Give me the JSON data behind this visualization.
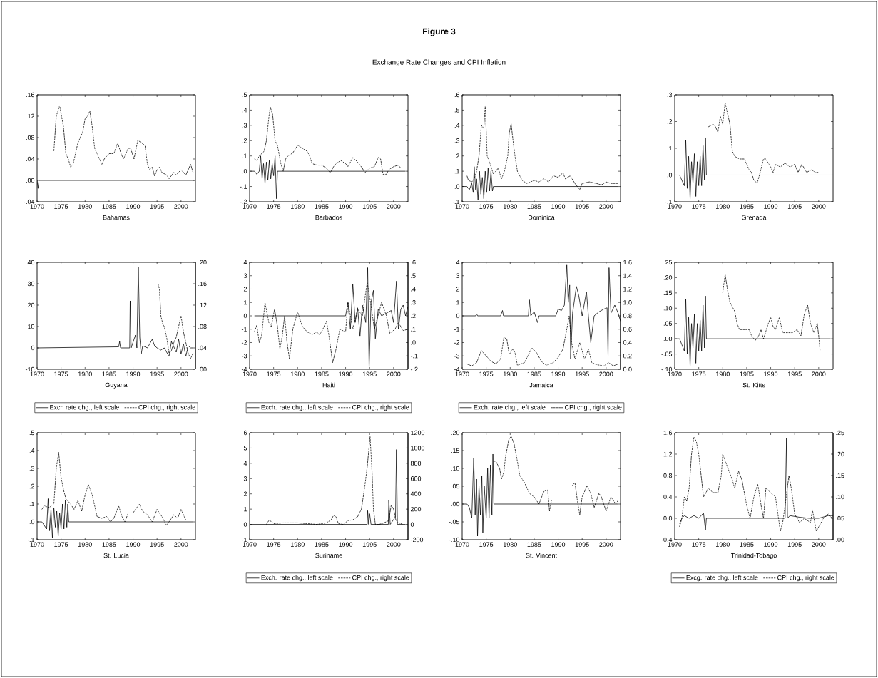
{
  "chart_data": [
    {
      "type": "line",
      "xlabel": "Bahamas",
      "xlim": [
        1970,
        2003
      ],
      "xticks": [
        1970,
        1975,
        1980,
        1985,
        1990,
        1995,
        2000
      ],
      "ylim": [
        -0.04,
        0.16
      ],
      "yticks": [
        {
          "value": -0.04,
          "label": "-.04"
        },
        {
          "value": 0,
          "label": ".00"
        },
        {
          "value": 0.04,
          "label": ".04"
        },
        {
          "value": 0.08,
          "label": ".08"
        },
        {
          "value": 0.12,
          "label": ".12"
        },
        {
          "value": 0.16,
          "label": ".16"
        }
      ],
      "series": [
        {
          "color": "#000000",
          "line_style": "solid",
          "x": [
            1970,
            1970.2,
            1970.4,
            2002.8
          ],
          "values": [
            0,
            -0.015,
            0,
            0
          ]
        },
        {
          "color": "#000000",
          "line_style": "dashed",
          "x": [
            1973.5,
            1974,
            1974.7,
            1975.5,
            1976,
            1976.5,
            1977,
            1977.5,
            1978.5,
            1979.5,
            1980,
            1980.5,
            1981,
            1981.5,
            1982,
            1982.5,
            1983.5,
            1984,
            1985,
            1986,
            1986.8,
            1987.5,
            1988,
            1989,
            1989.5,
            1990.2,
            1991,
            1991.8,
            1992.5,
            1993,
            1993.5,
            1994,
            1994.5,
            1995,
            1995.5,
            1996,
            1997,
            1997.5,
            1998.5,
            1999,
            2000,
            2001,
            2002,
            2002.5
          ],
          "values": [
            0.055,
            0.12,
            0.14,
            0.1,
            0.05,
            0.04,
            0.025,
            0.03,
            0.07,
            0.09,
            0.115,
            0.12,
            0.13,
            0.1,
            0.06,
            0.05,
            0.03,
            0.04,
            0.05,
            0.05,
            0.07,
            0.05,
            0.04,
            0.06,
            0.06,
            0.04,
            0.075,
            0.07,
            0.065,
            0.03,
            0.02,
            0.025,
            0.008,
            0.02,
            0.025,
            0.015,
            0.01,
            0.003,
            0.015,
            0.01,
            0.02,
            0.01,
            0.03,
            0.015
          ]
        }
      ]
    },
    {
      "type": "line",
      "xlabel": "Barbados",
      "xlim": [
        1970,
        2003
      ],
      "xticks": [
        1970,
        1975,
        1980,
        1985,
        1990,
        1995,
        2000
      ],
      "ylim": [
        -0.2,
        0.5
      ],
      "yticks": [
        {
          "value": -0.2,
          "label": "-.2"
        },
        {
          "value": -0.1,
          "label": "-.1"
        },
        {
          "value": 0,
          "label": ".0"
        },
        {
          "value": 0.1,
          "label": ".1"
        },
        {
          "value": 0.2,
          "label": ".2"
        },
        {
          "value": 0.3,
          "label": ".3"
        },
        {
          "value": 0.4,
          "label": ".4"
        },
        {
          "value": 0.5,
          "label": ".5"
        }
      ],
      "series": [
        {
          "color": "#000000",
          "line_style": "solid",
          "x": [
            1970,
            1971,
            1971.5,
            1972,
            1972.3,
            1972.6,
            1972.9,
            1973.2,
            1973.5,
            1973.8,
            1974.1,
            1974.4,
            1974.7,
            1975,
            1975.3,
            1975.6,
            1975.8,
            2002.5
          ],
          "values": [
            0,
            0,
            -0.02,
            0,
            0.1,
            -0.05,
            0.05,
            -0.08,
            0.06,
            -0.06,
            0.07,
            -0.05,
            0.05,
            -0.03,
            0.1,
            -0.18,
            0,
            0
          ]
        },
        {
          "color": "#000000",
          "line_style": "dashed",
          "x": [
            1971,
            1971.5,
            1972,
            1973,
            1973.5,
            1974,
            1974.3,
            1974.8,
            1975.3,
            1975.8,
            1976.5,
            1977,
            1977.5,
            1978,
            1979,
            1980,
            1981,
            1982,
            1982.5,
            1983,
            1984,
            1985,
            1986,
            1986.8,
            1987.5,
            1988,
            1989,
            1990,
            1990.5,
            1991.5,
            1992.5,
            1993.5,
            1994,
            1995,
            1996,
            1996.8,
            1997.3,
            1997.8,
            1998.5,
            1999,
            2000,
            2001,
            2001.5
          ],
          "values": [
            0.08,
            0.07,
            0.1,
            0.13,
            0.2,
            0.35,
            0.42,
            0.37,
            0.2,
            0.17,
            0.05,
            0,
            0.08,
            0.1,
            0.12,
            0.17,
            0.15,
            0.13,
            0.1,
            0.05,
            0.04,
            0.04,
            0.02,
            -0.01,
            0.03,
            0.05,
            0.07,
            0.05,
            0.03,
            0.09,
            0.06,
            0.02,
            -0.01,
            0.02,
            0.03,
            0.09,
            0.08,
            -0.02,
            -0.02,
            0.01,
            0.03,
            0.04,
            0.02
          ]
        }
      ]
    },
    {
      "type": "line",
      "title": "Figure 3",
      "subtitle": "Exchange Rate Changes and CPI Inflation",
      "xlabel": "Dominica",
      "xlim": [
        1970,
        2003
      ],
      "xticks": [
        1970,
        1975,
        1980,
        1985,
        1990,
        1995,
        2000
      ],
      "ylim": [
        -0.1,
        0.6
      ],
      "yticks": [
        {
          "value": -0.1,
          "label": "-.1"
        },
        {
          "value": 0,
          "label": ".0"
        },
        {
          "value": 0.1,
          "label": ".1"
        },
        {
          "value": 0.2,
          "label": ".2"
        },
        {
          "value": 0.3,
          "label": ".3"
        },
        {
          "value": 0.4,
          "label": ".4"
        },
        {
          "value": 0.5,
          "label": ".5"
        },
        {
          "value": 0.6,
          "label": ".6"
        }
      ],
      "series": [
        {
          "color": "#000000",
          "line_style": "solid",
          "x": [
            1970,
            1971,
            1971.5,
            1972,
            1972.3,
            1972.5,
            1972.8,
            1973,
            1973.3,
            1973.6,
            1973.9,
            1974.2,
            1974.5,
            1974.8,
            1975.1,
            1975.4,
            1975.7,
            1976,
            1976.3,
            1976.5,
            2002.5
          ],
          "values": [
            0,
            0,
            -0.02,
            0.02,
            -0.04,
            0.13,
            -0.02,
            0.05,
            -0.09,
            0.1,
            -0.05,
            0.06,
            -0.08,
            0.1,
            -0.04,
            0.12,
            -0.03,
            0.1,
            -0.03,
            0,
            0
          ]
        },
        {
          "color": "#000000",
          "line_style": "dashed",
          "x": [
            1971,
            1971.3,
            1972,
            1972.5,
            1973,
            1973.5,
            1974,
            1974.5,
            1974.8,
            1975.2,
            1975.8,
            1976.5,
            1977.5,
            1978.2,
            1978.8,
            1979.5,
            1979.8,
            1980.2,
            1980.6,
            1981,
            1981.5,
            1982.5,
            1983.5,
            1985,
            1986,
            1987,
            1988,
            1989,
            1990,
            1991,
            1991.5,
            1992.5,
            1993.5,
            1994.5,
            1995,
            1996.5,
            1998,
            1999,
            2000,
            2001,
            2002.5
          ],
          "values": [
            0.07,
            0.04,
            0.03,
            0.05,
            0.1,
            0.2,
            0.4,
            0.38,
            0.53,
            0.2,
            0.15,
            0.08,
            0.12,
            0.05,
            0.1,
            0.2,
            0.35,
            0.41,
            0.3,
            0.2,
            0.1,
            0.04,
            0.02,
            0.04,
            0.03,
            0.05,
            0.03,
            0.07,
            0.06,
            0.09,
            0.05,
            0.07,
            0.02,
            -0.02,
            0.02,
            0.03,
            0.02,
            0.01,
            0.03,
            0.02,
            0.02
          ]
        }
      ]
    },
    {
      "type": "line",
      "xlabel": "Grenada",
      "xlim": [
        1970,
        2003
      ],
      "xticks": [
        1970,
        1975,
        1980,
        1985,
        1990,
        1995,
        2000
      ],
      "ylim": [
        -0.1,
        0.3
      ],
      "yticks": [
        {
          "value": -0.1,
          "label": "-.1"
        },
        {
          "value": 0,
          "label": ".0"
        },
        {
          "value": 0.1,
          "label": ".1"
        },
        {
          "value": 0.2,
          "label": ".2"
        },
        {
          "value": 0.3,
          "label": ".3"
        }
      ],
      "series": [
        {
          "color": "#000000",
          "line_style": "solid",
          "x": [
            1970,
            1971,
            1971.5,
            1972,
            1972.3,
            1972.6,
            1972.9,
            1973.2,
            1973.5,
            1973.8,
            1974.1,
            1974.4,
            1974.7,
            1975,
            1975.3,
            1975.6,
            1975.9,
            1976.2,
            1976.4,
            1976.6,
            2003
          ],
          "values": [
            0,
            0,
            -0.02,
            -0.04,
            0.13,
            -0.05,
            0.07,
            -0.09,
            0.05,
            -0.03,
            0.08,
            -0.08,
            0.05,
            -0.04,
            0.07,
            -0.04,
            0.11,
            -0.02,
            0.14,
            0,
            0
          ]
        },
        {
          "color": "#000000",
          "line_style": "dashed",
          "x": [
            1977,
            1978,
            1978.5,
            1979,
            1979.5,
            1980,
            1980.5,
            1981,
            1981.5,
            1982,
            1982.5,
            1983.5,
            1984.5,
            1985,
            1985.5,
            1986,
            1986.5,
            1987.2,
            1987.8,
            1988.5,
            1989,
            1990,
            1990.5,
            1991,
            1992,
            1993,
            1994,
            1995,
            1995.7,
            1996.5,
            1997.5,
            1998.5,
            1999.3,
            2000
          ],
          "values": [
            0.18,
            0.19,
            0.18,
            0.16,
            0.22,
            0.19,
            0.27,
            0.23,
            0.19,
            0.09,
            0.07,
            0.06,
            0.06,
            0.04,
            0.02,
            0.01,
            -0.02,
            -0.03,
            0.01,
            0.06,
            0.06,
            0.03,
            0.01,
            0.04,
            0.03,
            0.045,
            0.03,
            0.04,
            0.01,
            0.04,
            0.01,
            0.02,
            0.01,
            0.01
          ]
        }
      ]
    },
    {
      "type": "line",
      "xlabel": "Guyana",
      "legend": "bottom",
      "xlim": [
        1970,
        2003
      ],
      "xticks": [
        1970,
        1975,
        1980,
        1985,
        1990,
        1995,
        2000
      ],
      "ylim": [
        -10,
        40
      ],
      "yticks": [
        -10,
        0,
        10,
        20,
        30,
        40
      ],
      "y2lim": [
        0,
        0.2
      ],
      "y2ticks": [
        {
          "value": 0,
          "label": ".00"
        },
        {
          "value": 0.04,
          "label": ".04"
        },
        {
          "value": 0.08,
          "label": ".08"
        },
        {
          "value": 0.12,
          "label": ".12"
        },
        {
          "value": 0.16,
          "label": ".16"
        },
        {
          "value": 0.2,
          "label": ".20"
        }
      ],
      "series": [
        {
          "name": "Exch rate chg., left scale",
          "color": "#000000",
          "line_style": "solid",
          "x": [
            1970,
            1987,
            1987.2,
            1987.4,
            1989.3,
            1989.4,
            1989.6,
            1990.5,
            1990.8,
            1991.1,
            1991.4,
            1991.7,
            1992,
            1993,
            1994,
            1994.5,
            1995,
            1995.8,
            1996.5,
            1997.5,
            1998,
            1999,
            1999.5,
            2000,
            2000.5,
            2001,
            2001.5,
            2002,
            2002.5
          ],
          "values": [
            0,
            0.5,
            3,
            0,
            0,
            22,
            0,
            6,
            0,
            38,
            5,
            -3,
            1,
            0,
            4,
            1,
            0,
            -1,
            0,
            -4,
            3,
            -2,
            4,
            -3,
            2,
            -4,
            1,
            0,
            0
          ]
        },
        {
          "name": "CPI chg., right scale",
          "axis": "y2",
          "color": "#000000",
          "line_style": "dashed",
          "x": [
            1995.2,
            1995.5,
            1995.8,
            1996.2,
            1996.5,
            1997,
            1997.5,
            1998,
            1998.5,
            1999,
            1999.5,
            2000,
            2000.5,
            2001,
            2001.5,
            2002,
            2002.5
          ],
          "values": [
            0.16,
            0.15,
            0.1,
            0.085,
            0.08,
            0.06,
            0.03,
            0.035,
            0.05,
            0.06,
            0.08,
            0.1,
            0.07,
            0.05,
            0.03,
            0.02,
            0.03
          ]
        }
      ]
    },
    {
      "type": "line",
      "xlabel": "Haiti",
      "legend": "bottom",
      "xlim": [
        1970,
        2003
      ],
      "xticks": [
        1970,
        1975,
        1980,
        1985,
        1990,
        1995,
        2000
      ],
      "ylim": [
        -4,
        4
      ],
      "yticks": [
        -4,
        -3,
        -2,
        -1,
        0,
        1,
        2,
        3,
        4
      ],
      "y2lim": [
        -0.2,
        0.6
      ],
      "y2ticks": [
        {
          "value": -0.2,
          "label": "-.2"
        },
        {
          "value": -0.1,
          "label": "-.1"
        },
        {
          "value": 0,
          "label": ".0"
        },
        {
          "value": 0.1,
          "label": ".1"
        },
        {
          "value": 0.2,
          "label": ".2"
        },
        {
          "value": 0.3,
          "label": ".3"
        },
        {
          "value": 0.4,
          "label": ".4"
        },
        {
          "value": 0.5,
          "label": ".5"
        },
        {
          "value": 0.6,
          "label": ".6"
        }
      ],
      "series": [
        {
          "name": "Exch. rate chg., left scale",
          "color": "#000000",
          "line_style": "solid",
          "x": [
            1971,
            1990,
            1990.5,
            1991,
            1991.5,
            1992,
            1992.5,
            1993,
            1993.5,
            1994.2,
            1994.6,
            1994.9,
            1995.3,
            1995.8,
            1996.2,
            1996.8,
            1997.5,
            1998.5,
            1999.5,
            2000,
            2000.6,
            2001,
            2001.5,
            2002,
            2002.5,
            2003
          ],
          "values": [
            0,
            0,
            1,
            -1,
            2.4,
            -0.5,
            0.6,
            -1.5,
            0.8,
            -0.5,
            3.6,
            -3.9,
            1,
            1.9,
            -1.7,
            0.5,
            0,
            0.2,
            0.4,
            -0.5,
            2.6,
            -1,
            0.5,
            0.8,
            0,
            0.7
          ]
        },
        {
          "name": "CPI chg., right scale",
          "axis": "y2",
          "color": "#000000",
          "line_style": "dashed",
          "x": [
            1971,
            1971.5,
            1972,
            1972.5,
            1973.2,
            1974,
            1974.5,
            1975.2,
            1975.8,
            1976.3,
            1976.8,
            1977.3,
            1977.8,
            1978.3,
            1979,
            1980,
            1981,
            1982,
            1983,
            1984,
            1984.5,
            1985,
            1986,
            1986.5,
            1987.3,
            1988,
            1988.8,
            1990,
            1990.5,
            1991.5,
            1992.5,
            1993.5,
            1994.5,
            1995.2,
            1996,
            1997.5,
            1998.5,
            1999.2,
            2000.3,
            2001,
            2002,
            2003
          ],
          "values": [
            0.08,
            0.13,
            0,
            0.05,
            0.3,
            0.15,
            0.12,
            0.25,
            0.12,
            -0.05,
            0.05,
            0.2,
            0,
            -0.12,
            0.1,
            0.23,
            0.12,
            0.08,
            0.06,
            0.08,
            0.06,
            0.08,
            0.16,
            0.06,
            -0.15,
            -0.05,
            0.1,
            0.08,
            0.3,
            0.1,
            0.25,
            0.2,
            0.45,
            0.3,
            0.1,
            0.3,
            0.2,
            0.07,
            0.1,
            0.15,
            0.09,
            0.1
          ]
        }
      ]
    },
    {
      "type": "line",
      "xlabel": "Jamaica",
      "legend": "bottom",
      "xlim": [
        1970,
        2003
      ],
      "xticks": [
        1970,
        1975,
        1980,
        1985,
        1990,
        1995,
        2000
      ],
      "ylim": [
        -4,
        4
      ],
      "yticks": [
        -4,
        -3,
        -2,
        -1,
        0,
        1,
        2,
        3,
        4
      ],
      "y2lim": [
        0,
        1.6
      ],
      "y2ticks": [
        {
          "value": 0,
          "label": "0.0"
        },
        0.2,
        0.4,
        0.6,
        0.8,
        {
          "value": 1,
          "label": "1.0"
        },
        1.2,
        1.4,
        1.6
      ],
      "series": [
        {
          "name": "Exch. rate chg., left scale",
          "color": "#000000",
          "line_style": "solid",
          "x": [
            1970,
            1972.8,
            1973,
            1973.2,
            1978,
            1978.4,
            1978.6,
            1983.8,
            1984,
            1984.3,
            1985,
            1985.7,
            1986,
            1989.5,
            1990,
            1990.7,
            1991.3,
            1991.8,
            1992.1,
            1992.4,
            1992.6,
            1993,
            1993.8,
            1994.3,
            1995,
            1995.9,
            1996.3,
            1996.8,
            1997.5,
            1998.5,
            1999.5,
            2000.2,
            2000.4,
            2000.6,
            2001,
            2001.8,
            2002.5,
            2003
          ],
          "values": [
            0,
            0,
            0.15,
            0,
            0,
            0.4,
            0,
            0,
            1.2,
            0,
            0.3,
            -0.5,
            0,
            0,
            0.5,
            0.4,
            0.8,
            3.8,
            1,
            2.3,
            -3.2,
            0.2,
            2.2,
            1.5,
            0,
            1.8,
            0,
            -2,
            0,
            0.3,
            0.5,
            0.6,
            -3,
            3.6,
            0.2,
            0.8,
            0.2,
            -0.4
          ]
        },
        {
          "name": "CPI chg., right scale",
          "axis": "y2",
          "color": "#000000",
          "line_style": "dashed",
          "x": [
            1971,
            1972,
            1973,
            1974,
            1975,
            1976,
            1977,
            1978,
            1978.7,
            1979.3,
            1979.8,
            1980.5,
            1981,
            1981.5,
            1983,
            1984.5,
            1985.5,
            1986.5,
            1987.5,
            1989,
            1990,
            1991,
            1991.8,
            1992.3,
            1992.8,
            1993.5,
            1994.5,
            1995.5,
            1996.3,
            1997,
            1998,
            1999.5,
            2000.5,
            2001.5,
            2002.5
          ],
          "values": [
            0.08,
            0.05,
            0.1,
            0.28,
            0.2,
            0.12,
            0.08,
            0.15,
            0.48,
            0.45,
            0.22,
            0.3,
            0.25,
            0.06,
            0.1,
            0.32,
            0.25,
            0.12,
            0.06,
            0.1,
            0.18,
            0.3,
            0.6,
            0.8,
            0.4,
            0.15,
            0.4,
            0.15,
            0.3,
            0.1,
            0.07,
            0.05,
            0.1,
            0.05,
            0.08
          ]
        }
      ]
    },
    {
      "type": "line",
      "xlabel": "St. Kitts",
      "xlim": [
        1970,
        2003
      ],
      "xticks": [
        1970,
        1975,
        1980,
        1985,
        1990,
        1995,
        2000
      ],
      "ylim": [
        -0.1,
        0.25
      ],
      "yticks": [
        {
          "value": -0.1,
          "label": "-.10"
        },
        {
          "value": -0.05,
          "label": "-.05"
        },
        {
          "value": 0,
          "label": ".00"
        },
        {
          "value": 0.05,
          "label": ".05"
        },
        {
          "value": 0.1,
          "label": ".10"
        },
        {
          "value": 0.15,
          "label": ".15"
        },
        {
          "value": 0.2,
          "label": ".20"
        },
        {
          "value": 0.25,
          "label": ".25"
        }
      ],
      "series": [
        {
          "color": "#000000",
          "line_style": "solid",
          "x": [
            1970,
            1971,
            1971.5,
            1972,
            1972.3,
            1972.6,
            1972.9,
            1973.2,
            1973.5,
            1973.8,
            1974.1,
            1974.4,
            1974.7,
            1975,
            1975.3,
            1975.6,
            1975.9,
            1976.2,
            1976.4,
            1976.6,
            2002.5
          ],
          "values": [
            0,
            0,
            -0.02,
            -0.04,
            0.13,
            -0.05,
            0.07,
            -0.09,
            0.05,
            -0.03,
            0.08,
            -0.08,
            0.05,
            -0.04,
            0.06,
            -0.04,
            0.11,
            -0.03,
            0.14,
            0,
            0
          ]
        },
        {
          "color": "#000000",
          "line_style": "dashed",
          "x": [
            1980,
            1980.5,
            1981,
            1981.5,
            1982.5,
            1983,
            1983.5,
            1984.5,
            1985.5,
            1986,
            1986.8,
            1987.5,
            1988,
            1988.5,
            1989.5,
            1990,
            1990.5,
            1991,
            1991.8,
            1992.5,
            1993.5,
            1994.5,
            1995.5,
            1996.3,
            1997,
            1997.7,
            1998.3,
            1999,
            1999.7,
            2000,
            2000.3
          ],
          "values": [
            0.15,
            0.21,
            0.16,
            0.12,
            0.09,
            0.05,
            0.03,
            0.03,
            0.03,
            0.01,
            -0.005,
            0.01,
            0.03,
            0,
            0.05,
            0.07,
            0.04,
            0.03,
            0.07,
            0.02,
            0.02,
            0.02,
            0.03,
            0.01,
            0.08,
            0.11,
            0.05,
            0.02,
            0.05,
            0.01,
            -0.04
          ]
        }
      ]
    },
    {
      "type": "line",
      "xlabel": "St. Lucia",
      "xlim": [
        1970,
        2003
      ],
      "xticks": [
        1970,
        1975,
        1980,
        1985,
        1990,
        1995,
        2000
      ],
      "ylim": [
        -0.1,
        0.5
      ],
      "yticks": [
        {
          "value": -0.1,
          "label": "-.1"
        },
        {
          "value": 0,
          "label": ".0"
        },
        {
          "value": 0.1,
          "label": ".1"
        },
        {
          "value": 0.2,
          "label": ".2"
        },
        {
          "value": 0.3,
          "label": ".3"
        },
        {
          "value": 0.4,
          "label": ".4"
        },
        {
          "value": 0.5,
          "label": ".5"
        }
      ],
      "series": [
        {
          "color": "#000000",
          "line_style": "solid",
          "x": [
            1970,
            1971,
            1971.5,
            1972,
            1972.3,
            1972.6,
            1972.9,
            1973.2,
            1973.5,
            1973.8,
            1974.1,
            1974.4,
            1974.7,
            1975,
            1975.3,
            1975.6,
            1975.9,
            1976.2,
            1976.4,
            1976.6,
            2002.5
          ],
          "values": [
            0,
            0,
            -0.02,
            -0.04,
            0.13,
            -0.05,
            0.07,
            -0.09,
            0.08,
            -0.03,
            0.06,
            -0.08,
            0.05,
            -0.04,
            0.1,
            -0.04,
            0.12,
            -0.03,
            0.1,
            0,
            0
          ]
        },
        {
          "color": "#000000",
          "line_style": "dashed",
          "x": [
            1971,
            1971.5,
            1972.5,
            1973.5,
            1974,
            1974.5,
            1975,
            1975.5,
            1976,
            1977,
            1977.7,
            1978.5,
            1979.3,
            1980,
            1980.7,
            1981.5,
            1982.5,
            1983.5,
            1984.5,
            1985.3,
            1986,
            1987,
            1987.7,
            1988.3,
            1989,
            1990,
            1991.3,
            1992,
            1993,
            1994,
            1995,
            1996,
            1997,
            1998,
            1998.5,
            1999.3,
            2000,
            2001
          ],
          "values": [
            0.07,
            0.09,
            0.08,
            0.1,
            0.3,
            0.39,
            0.25,
            0.18,
            0.13,
            0.1,
            0.07,
            0.12,
            0.06,
            0.15,
            0.21,
            0.15,
            0.03,
            0.02,
            0.03,
            0,
            0.02,
            0.09,
            0.03,
            0,
            0.05,
            0.05,
            0.1,
            0.06,
            0.04,
            0,
            0.07,
            0.03,
            -0.02,
            0.02,
            0.04,
            0.02,
            0.07,
            0.01
          ]
        }
      ]
    },
    {
      "type": "line",
      "xlabel": "Suriname",
      "legend": "bottom",
      "xlim": [
        1970,
        2003
      ],
      "xticks": [
        1970,
        1975,
        1980,
        1985,
        1990,
        1995,
        2000
      ],
      "ylim": [
        -1,
        6
      ],
      "yticks": [
        -1,
        0,
        1,
        2,
        3,
        4,
        5,
        6
      ],
      "y2lim": [
        -200,
        1200
      ],
      "y2ticks": [
        -200,
        0,
        200,
        400,
        600,
        800,
        1000,
        1200
      ],
      "series": [
        {
          "name": "Exch. rate chg., left scale",
          "color": "#000000",
          "line_style": "solid",
          "x": [
            1970,
            1994.5,
            1994.6,
            1994.8,
            1995,
            1995.3,
            1998.9,
            1999,
            1999.3,
            2000.4,
            2000.6,
            2000.8,
            2002.5
          ],
          "values": [
            0,
            0,
            0.9,
            0,
            0.7,
            0,
            0,
            1.6,
            0,
            0.5,
            4.9,
            0,
            0
          ]
        },
        {
          "name": "CPI chg., right scale",
          "axis": "y2",
          "color": "#000000",
          "line_style": "dashed",
          "x": [
            1973.5,
            1974,
            1974.5,
            1975,
            1977,
            1980,
            1982,
            1984,
            1986,
            1987,
            1987.5,
            1988,
            1988.5,
            1989.5,
            1990.5,
            1991.5,
            1992.5,
            1993.3,
            1994,
            1994.5,
            1994.8,
            1995.1,
            1995.5,
            1995.8,
            1996.2,
            1997,
            1998,
            1999,
            1999.5,
            2000,
            2000.5,
            2001,
            2002
          ],
          "values": [
            0,
            50,
            40,
            10,
            20,
            20,
            10,
            0,
            20,
            60,
            120,
            100,
            10,
            0,
            50,
            60,
            100,
            200,
            500,
            750,
            950,
            1150,
            700,
            200,
            0,
            0,
            20,
            50,
            250,
            200,
            50,
            20,
            0
          ]
        }
      ]
    },
    {
      "type": "line",
      "xlabel": "St. Vincent",
      "xlim": [
        1970,
        2003
      ],
      "xticks": [
        1970,
        1975,
        1980,
        1985,
        1990,
        1995,
        2000
      ],
      "ylim": [
        -0.1,
        0.2
      ],
      "yticks": [
        {
          "value": -0.1,
          "label": "-.10"
        },
        {
          "value": -0.05,
          "label": "-.05"
        },
        {
          "value": 0,
          "label": ".00"
        },
        {
          "value": 0.05,
          "label": ".05"
        },
        {
          "value": 0.1,
          "label": ".10"
        },
        {
          "value": 0.15,
          "label": ".15"
        },
        {
          "value": 0.2,
          "label": ".20"
        }
      ],
      "series": [
        {
          "color": "#000000",
          "line_style": "solid",
          "x": [
            1970,
            1971,
            1971.5,
            1972,
            1972.4,
            1972.7,
            1973,
            1973.2,
            1973.5,
            1973.8,
            1974.1,
            1974.3,
            1974.6,
            1975,
            1975.3,
            1975.6,
            1975.9,
            1976.2,
            1976.4,
            1976.6,
            2002.5
          ],
          "values": [
            0,
            0,
            -0.01,
            -0.04,
            0.13,
            -0.03,
            0.07,
            -0.09,
            0.05,
            -0.03,
            0.08,
            -0.08,
            0.05,
            -0.04,
            0.1,
            -0.04,
            0.11,
            -0.03,
            0.14,
            0,
            0
          ]
        },
        {
          "color": "#000000",
          "line_style": "dashed",
          "x": [
            1976.5,
            1977,
            1977.8,
            1978.2,
            1978.7,
            1979,
            1979.7,
            1980.2,
            1980.8,
            1981.5,
            1982,
            1983,
            1984,
            1985,
            1986,
            1987,
            1987.8,
            1988.2,
            1988.6,
            1990.5,
            1992.8,
            1993.5,
            1994,
            1994.5,
            1995,
            1996,
            1996.8,
            1997.5,
            1998.5,
            1999,
            2000,
            2001,
            2002,
            2002.5
          ],
          "values": [
            0.12,
            0.12,
            0.1,
            0.07,
            0.09,
            0.13,
            0.18,
            0.19,
            0.17,
            0.12,
            0.08,
            0.06,
            0.03,
            0.02,
            0,
            0.035,
            0.04,
            -0.02,
            0.01,
            null,
            0.05,
            0.06,
            0.01,
            -0.03,
            0.02,
            0.05,
            0.03,
            -0.01,
            0.03,
            0.02,
            -0.02,
            0.02,
            0,
            0.01
          ]
        }
      ]
    },
    {
      "type": "line",
      "xlabel": "Trinidad-Tobago",
      "legend": "bottom",
      "xlim": [
        1970,
        2003
      ],
      "xticks": [
        1970,
        1975,
        1980,
        1985,
        1990,
        1995,
        2000
      ],
      "ylim": [
        -0.4,
        1.6
      ],
      "yticks": [
        -0.4,
        {
          "value": 0,
          "label": "0.0"
        },
        0.4,
        0.8,
        1.2,
        1.6
      ],
      "y2lim": [
        0,
        0.25
      ],
      "y2ticks": [
        {
          "value": 0,
          "label": ".00"
        },
        {
          "value": 0.05,
          "label": ".05"
        },
        {
          "value": 0.1,
          "label": ".10"
        },
        {
          "value": 0.15,
          "label": ".15"
        },
        {
          "value": 0.2,
          "label": ".20"
        },
        {
          "value": 0.25,
          "label": ".25"
        }
      ],
      "series": [
        {
          "name": "Excg. rate chg., left scale",
          "color": "#000000",
          "line_style": "solid",
          "x": [
            1971,
            1971.5,
            1972,
            1973,
            1974,
            1975,
            1976,
            1976.4,
            1976.6,
            1993,
            1993.3,
            1993.5,
            1994,
            1996,
            1998,
            2000,
            2002,
            2003
          ],
          "values": [
            -0.1,
            0,
            0.05,
            0,
            0.05,
            0,
            0.1,
            -0.22,
            0,
            0,
            1.5,
            0,
            0.05,
            0.02,
            0,
            0,
            0.05,
            0.05
          ]
        },
        {
          "name": "CPI chg., right scale",
          "axis": "y2",
          "color": "#000000",
          "line_style": "dashed",
          "x": [
            1971,
            1971.5,
            1972,
            1972.5,
            1973,
            1973.5,
            1974,
            1974.5,
            1975,
            1975.5,
            1976,
            1977,
            1978,
            1979,
            1979.7,
            1980,
            1981,
            1982,
            1982.5,
            1983.3,
            1984,
            1985,
            1985.7,
            1986.5,
            1987.3,
            1988,
            1988.5,
            1989,
            1990,
            1991,
            1992,
            1992.5,
            1993,
            1993.8,
            1994.3,
            1995,
            1996,
            1997,
            1998.3,
            1998.7,
            1999.5,
            2000,
            2001,
            2002,
            2002.8
          ],
          "values": [
            0.03,
            0.05,
            0.1,
            0.09,
            0.12,
            0.2,
            0.24,
            0.23,
            0.2,
            0.15,
            0.1,
            0.12,
            0.11,
            0.11,
            0.15,
            0.2,
            0.17,
            0.14,
            0.12,
            0.16,
            0.14,
            0.08,
            0.05,
            0.1,
            0.13,
            0.08,
            0.05,
            0.12,
            0.11,
            0.1,
            0.02,
            0.04,
            0.08,
            0.15,
            0.12,
            0.06,
            0.04,
            0.05,
            0.04,
            0.07,
            0.02,
            0.03,
            0.05,
            0.06,
            0.05
          ]
        }
      ]
    }
  ]
}
